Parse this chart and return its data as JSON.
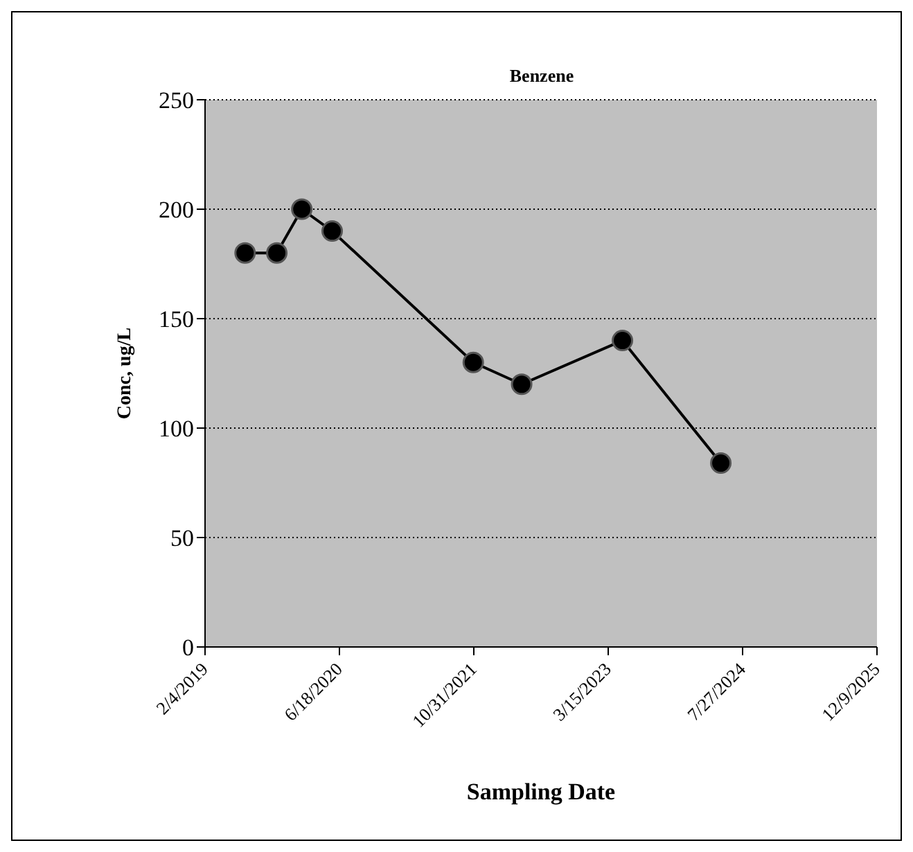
{
  "chart_data": {
    "type": "line",
    "title": "Benzene",
    "xlabel": "Sampling Date",
    "ylabel": "Conc, ug/L",
    "x": [
      "2019-07-03",
      "2019-10-29",
      "2020-01-30",
      "2020-05-22",
      "2021-10-29",
      "2022-04-27",
      "2023-05-07",
      "2024-05-07"
    ],
    "series": [
      {
        "color": "#000000",
        "values": [
          180,
          180,
          200,
          190,
          130,
          120,
          140,
          84
        ]
      }
    ],
    "xlim": [
      "2019-02-04",
      "2025-12-09"
    ],
    "xticks": [
      {
        "value": "2019-02-04",
        "label": "2/4/2019"
      },
      {
        "value": "2020-06-18",
        "label": "6/18/2020"
      },
      {
        "value": "2021-10-31",
        "label": "10/31/2021"
      },
      {
        "value": "2023-03-15",
        "label": "3/15/2023"
      },
      {
        "value": "2024-07-27",
        "label": "7/27/2024"
      },
      {
        "value": "2025-12-09",
        "label": "12/9/2025"
      }
    ],
    "ylim": [
      0,
      250
    ],
    "yticks": [
      0,
      50,
      100,
      150,
      200,
      250
    ],
    "grid": "y",
    "legend": false,
    "marker": "circle",
    "line_style": "solid"
  }
}
